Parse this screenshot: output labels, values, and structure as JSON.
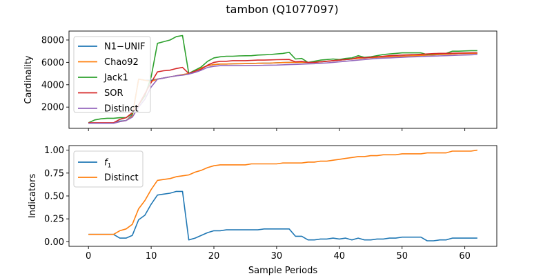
{
  "figure": {
    "title": "tambon (Q1077097)"
  },
  "colors": {
    "blue": "#1f77b4",
    "orange": "#ff7f0e",
    "green": "#2ca02c",
    "red": "#d62728",
    "purple": "#9467bd"
  },
  "chart_data": [
    {
      "type": "line",
      "xlabel": "",
      "ylabel": "Cardinality",
      "xlim": [
        -3.1,
        65.1
      ],
      "ylim": [
        100,
        8800
      ],
      "xticks": [
        0,
        10,
        20,
        30,
        40,
        50,
        60
      ],
      "show_xtick_labels": false,
      "yticks": [
        2000,
        4000,
        6000,
        8000
      ],
      "ytick_labels": [
        "2000",
        "4000",
        "6000",
        "8000"
      ],
      "legend": "top-left",
      "grid": false,
      "x": [
        0,
        1,
        2,
        3,
        4,
        5,
        6,
        7,
        8,
        9,
        10,
        11,
        12,
        13,
        14,
        15,
        16,
        17,
        18,
        19,
        20,
        21,
        22,
        23,
        24,
        25,
        26,
        27,
        28,
        29,
        30,
        31,
        32,
        33,
        34,
        35,
        36,
        37,
        38,
        39,
        40,
        41,
        42,
        43,
        44,
        45,
        46,
        47,
        48,
        49,
        50,
        51,
        52,
        53,
        54,
        55,
        56,
        57,
        58,
        59,
        60,
        61,
        62
      ],
      "series": [
        {
          "name": "N1−UNIF",
          "color_key": "blue",
          "values": [
            550,
            560,
            560,
            560,
            560,
            750,
            800,
            1300,
            4500,
            4400,
            4400,
            4500,
            4600,
            4700,
            4800,
            4900,
            5000,
            5300,
            5500,
            5700,
            5800,
            5850,
            5850,
            5870,
            5880,
            5890,
            5900,
            5920,
            5930,
            5940,
            5960,
            5980,
            6000,
            6000,
            6000,
            6000,
            6020,
            6050,
            6100,
            6150,
            6200,
            6250,
            6300,
            6350,
            6400,
            6420,
            6450,
            6480,
            6500,
            6520,
            6550,
            6580,
            6600,
            6620,
            6650,
            6680,
            6700,
            6720,
            6750,
            6780,
            6800,
            6810,
            6820
          ]
        },
        {
          "name": "Chao92",
          "color_key": "orange",
          "values": [
            550,
            560,
            560,
            560,
            560,
            700,
            800,
            1200,
            4500,
            4400,
            4300,
            4500,
            4600,
            4700,
            4800,
            4900,
            5000,
            5300,
            5500,
            5700,
            5800,
            5850,
            5850,
            5870,
            5880,
            5890,
            5900,
            5920,
            5930,
            5940,
            5960,
            5980,
            6000,
            6000,
            6000,
            6000,
            6020,
            6050,
            6100,
            6150,
            6200,
            6250,
            6300,
            6350,
            6400,
            6420,
            6450,
            6480,
            6500,
            6520,
            6550,
            6580,
            6600,
            6620,
            6650,
            6680,
            6700,
            6720,
            6750,
            6780,
            6800,
            6810,
            6820
          ]
        },
        {
          "name": "Jack1",
          "color_key": "green",
          "values": [
            600,
            850,
            950,
            1000,
            1000,
            1050,
            1050,
            1400,
            2200,
            3000,
            4700,
            7700,
            7850,
            8000,
            8300,
            8400,
            5000,
            5300,
            5600,
            6100,
            6400,
            6500,
            6550,
            6550,
            6580,
            6590,
            6600,
            6650,
            6680,
            6700,
            6750,
            6800,
            6900,
            6300,
            6350,
            6000,
            6100,
            6200,
            6250,
            6300,
            6250,
            6350,
            6400,
            6600,
            6450,
            6500,
            6600,
            6700,
            6750,
            6800,
            6850,
            6850,
            6850,
            6850,
            6700,
            6750,
            6800,
            6800,
            7000,
            7000,
            7020,
            7050,
            7050
          ]
        },
        {
          "name": "SOR",
          "color_key": "red",
          "values": [
            600,
            600,
            600,
            600,
            600,
            900,
            1050,
            1500,
            2200,
            3200,
            4200,
            5150,
            5250,
            5300,
            5450,
            5550,
            5000,
            5200,
            5400,
            5750,
            6000,
            6100,
            6100,
            6150,
            6150,
            6150,
            6180,
            6200,
            6200,
            6220,
            6240,
            6250,
            6260,
            6050,
            6080,
            6000,
            6000,
            6050,
            6100,
            6150,
            6200,
            6250,
            6300,
            6450,
            6400,
            6450,
            6500,
            6550,
            6600,
            6620,
            6650,
            6680,
            6700,
            6720,
            6750,
            6780,
            6800,
            6810,
            6820,
            6830,
            6840,
            6850,
            6850
          ]
        },
        {
          "name": "Distinct",
          "color_key": "purple",
          "values": [
            550,
            550,
            550,
            550,
            550,
            700,
            800,
            1100,
            2000,
            2700,
            3800,
            4500,
            4600,
            4700,
            4800,
            4850,
            4950,
            5100,
            5300,
            5550,
            5650,
            5700,
            5700,
            5700,
            5700,
            5710,
            5720,
            5730,
            5740,
            5750,
            5760,
            5780,
            5800,
            5820,
            5840,
            5860,
            5880,
            5920,
            5950,
            6000,
            6050,
            6100,
            6150,
            6200,
            6250,
            6300,
            6350,
            6380,
            6400,
            6430,
            6450,
            6480,
            6500,
            6520,
            6540,
            6560,
            6580,
            6600,
            6620,
            6640,
            6660,
            6680,
            6700
          ]
        }
      ]
    },
    {
      "type": "line",
      "xlabel": "Sample Periods",
      "ylabel": "Indicators",
      "xlim": [
        -3.1,
        65.1
      ],
      "ylim": [
        -0.05,
        1.05
      ],
      "xticks": [
        0,
        10,
        20,
        30,
        40,
        50,
        60
      ],
      "xtick_labels": [
        "0",
        "10",
        "20",
        "30",
        "40",
        "50",
        "60"
      ],
      "yticks": [
        0.0,
        0.25,
        0.5,
        0.75,
        1.0
      ],
      "ytick_labels": [
        "0.00",
        "0.25",
        "0.50",
        "0.75",
        "1.00"
      ],
      "legend": "top-left",
      "grid": false,
      "x": [
        0,
        1,
        2,
        3,
        4,
        5,
        6,
        7,
        8,
        9,
        10,
        11,
        12,
        13,
        14,
        15,
        16,
        17,
        18,
        19,
        20,
        21,
        22,
        23,
        24,
        25,
        26,
        27,
        28,
        29,
        30,
        31,
        32,
        33,
        34,
        35,
        36,
        37,
        38,
        39,
        40,
        41,
        42,
        43,
        44,
        45,
        46,
        47,
        48,
        49,
        50,
        51,
        52,
        53,
        54,
        55,
        56,
        57,
        58,
        59,
        60,
        61,
        62
      ],
      "series": [
        {
          "name": "f",
          "name_sub": "1",
          "color_key": "blue",
          "values": [
            0.08,
            0.08,
            0.08,
            0.08,
            0.08,
            0.04,
            0.04,
            0.07,
            0.24,
            0.29,
            0.41,
            0.51,
            0.52,
            0.53,
            0.55,
            0.55,
            0.02,
            0.04,
            0.07,
            0.1,
            0.12,
            0.12,
            0.13,
            0.13,
            0.13,
            0.13,
            0.13,
            0.13,
            0.14,
            0.14,
            0.14,
            0.14,
            0.14,
            0.06,
            0.06,
            0.02,
            0.02,
            0.03,
            0.03,
            0.04,
            0.03,
            0.04,
            0.02,
            0.04,
            0.02,
            0.02,
            0.03,
            0.03,
            0.04,
            0.04,
            0.05,
            0.05,
            0.05,
            0.05,
            0.01,
            0.01,
            0.02,
            0.02,
            0.04,
            0.04,
            0.04,
            0.04,
            0.04
          ]
        },
        {
          "name": "Distinct",
          "color_key": "orange",
          "values": [
            0.08,
            0.08,
            0.08,
            0.08,
            0.08,
            0.12,
            0.14,
            0.19,
            0.36,
            0.45,
            0.57,
            0.67,
            0.68,
            0.69,
            0.71,
            0.72,
            0.73,
            0.76,
            0.78,
            0.81,
            0.83,
            0.84,
            0.84,
            0.84,
            0.84,
            0.84,
            0.85,
            0.85,
            0.85,
            0.85,
            0.85,
            0.86,
            0.86,
            0.86,
            0.86,
            0.87,
            0.87,
            0.88,
            0.88,
            0.89,
            0.9,
            0.91,
            0.92,
            0.93,
            0.93,
            0.94,
            0.94,
            0.95,
            0.95,
            0.95,
            0.96,
            0.96,
            0.96,
            0.96,
            0.97,
            0.97,
            0.97,
            0.97,
            0.99,
            0.99,
            0.99,
            0.99,
            1.0
          ]
        }
      ]
    }
  ]
}
